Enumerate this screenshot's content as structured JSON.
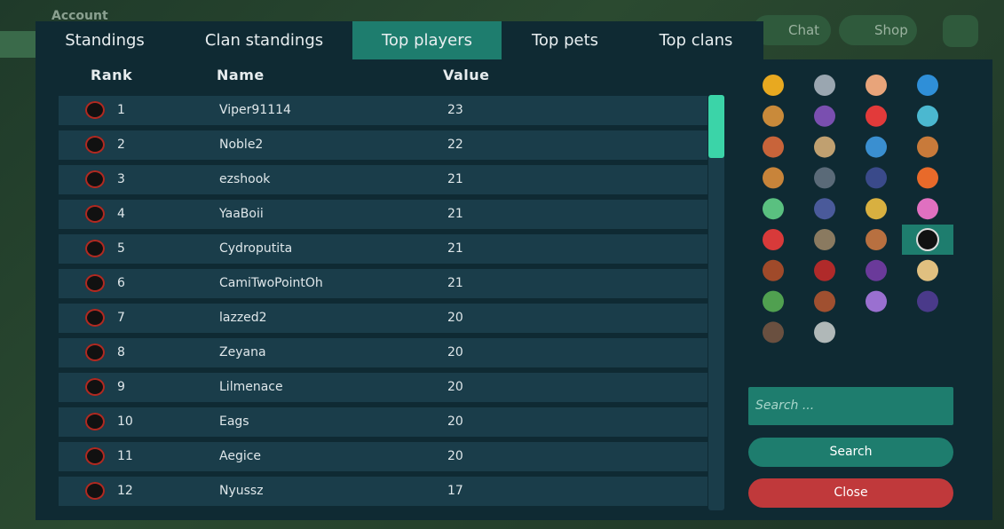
{
  "background": {
    "account": "Account",
    "chat": "Chat",
    "shop": "Shop"
  },
  "tabs": {
    "items": [
      "Standings",
      "Clan standings",
      "Top players",
      "Top pets",
      "Top clans"
    ],
    "active": 2
  },
  "table": {
    "columns": [
      "Rank",
      "Name",
      "Value"
    ],
    "rows": [
      [
        1,
        "Viper91114",
        23
      ],
      [
        2,
        "Noble2",
        22
      ],
      [
        3,
        "ezshook",
        21
      ],
      [
        4,
        "YaaBoii",
        21
      ],
      [
        5,
        "Cydroputita",
        21
      ],
      [
        6,
        "CamiTwoPointOh",
        21
      ],
      [
        7,
        "lazzed2",
        20
      ],
      [
        8,
        "Zeyana",
        20
      ],
      [
        9,
        "Lilmenace",
        20
      ],
      [
        10,
        "Eags",
        20
      ],
      [
        11,
        "Aegice",
        20
      ],
      [
        12,
        "Nyussz",
        17
      ]
    ]
  },
  "search": {
    "placeholder": "Search ...",
    "button": "Search"
  },
  "close": "Close"
}
